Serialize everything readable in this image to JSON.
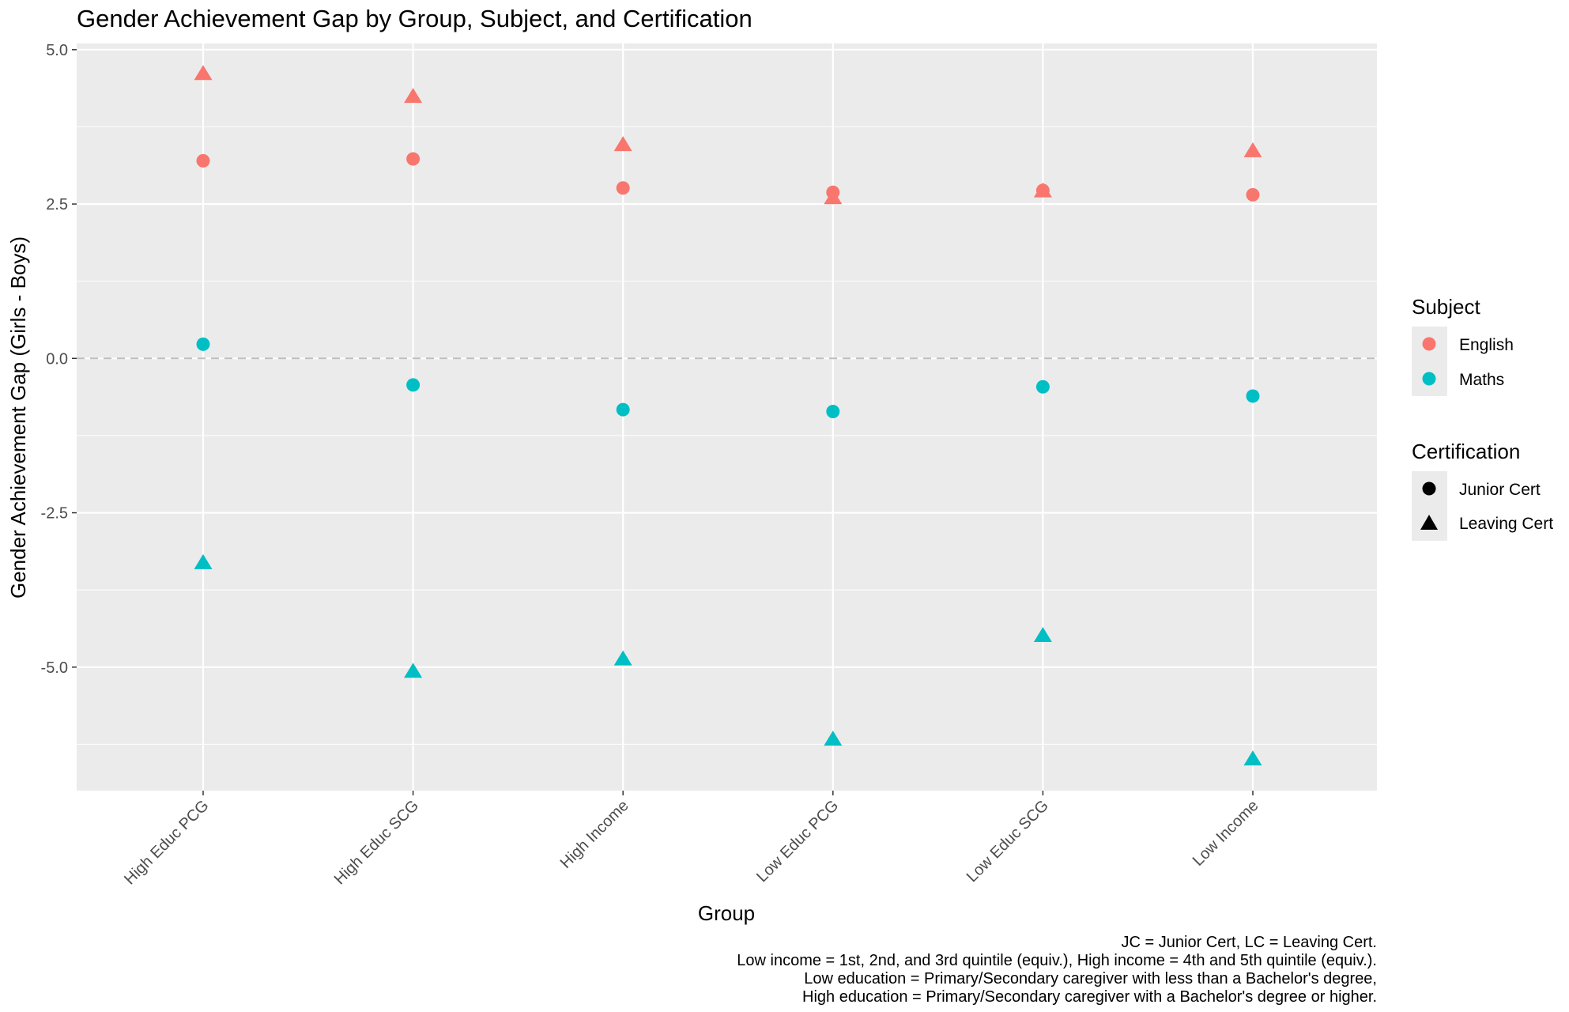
{
  "chart_data": {
    "type": "scatter",
    "title": "Gender Achievement Gap by Group, Subject, and Certification",
    "xlabel": "Group",
    "ylabel": "Gender Achievement Gap (Girls - Boys)",
    "categories": [
      "High Educ PCG",
      "High Educ SCG",
      "High Income",
      "Low Educ PCG",
      "Low Educ SCG",
      "Low Income"
    ],
    "ylim": [
      -7.0,
      5.1
    ],
    "yticks": [
      5.0,
      2.5,
      0.0,
      -2.5,
      -5.0
    ],
    "ytick_labels": [
      "5.0",
      "2.5",
      "0.0",
      "-2.5",
      "-5.0"
    ],
    "grid": true,
    "reference_line": {
      "y": 0.0,
      "style": "dashed"
    },
    "series": [
      {
        "subject": "English",
        "certification": "Junior Cert",
        "values": [
          3.2,
          3.23,
          2.76,
          2.69,
          2.72,
          2.65
        ]
      },
      {
        "subject": "English",
        "certification": "Leaving Cert",
        "values": [
          4.6,
          4.23,
          3.45,
          2.59,
          2.7,
          3.35
        ]
      },
      {
        "subject": "Maths",
        "certification": "Junior Cert",
        "values": [
          0.23,
          -0.43,
          -0.83,
          -0.86,
          -0.46,
          -0.61
        ]
      },
      {
        "subject": "Maths",
        "certification": "Leaving Cert",
        "values": [
          -3.32,
          -5.08,
          -4.88,
          -6.18,
          -4.5,
          -6.5
        ]
      }
    ],
    "legend": {
      "placement": "right",
      "subject": {
        "title": "Subject",
        "items": [
          {
            "label": "English",
            "color": "#F8766D"
          },
          {
            "label": "Maths",
            "color": "#00BFC4"
          }
        ]
      },
      "certification": {
        "title": "Certification",
        "items": [
          {
            "label": "Junior Cert",
            "shape": "circle"
          },
          {
            "label": "Leaving Cert",
            "shape": "triangle"
          }
        ]
      }
    },
    "caption": [
      "JC = Junior Cert, LC = Leaving Cert.",
      "Low income = 1st, 2nd, and 3rd quintile (equiv.), High income = 4th and 5th quintile (equiv.).",
      "Low education = Primary/Secondary caregiver with less than a Bachelor's degree,",
      "High education = Primary/Secondary caregiver with a Bachelor's degree or higher."
    ],
    "colors": {
      "English": "#F8766D",
      "Maths": "#00BFC4",
      "panel": "#EBEBEB",
      "grid": "#FFFFFF",
      "ref_line": "#BEBEBE"
    }
  }
}
